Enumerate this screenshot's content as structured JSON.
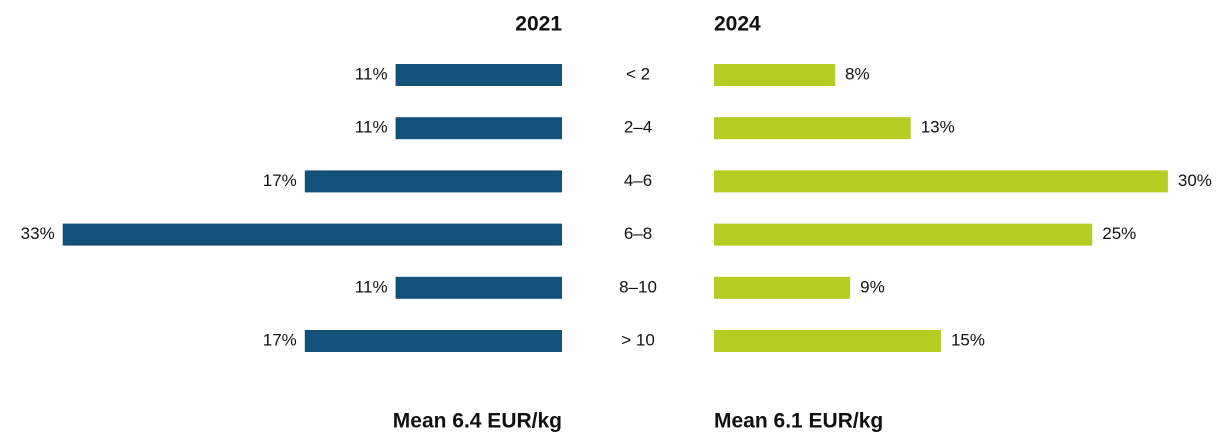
{
  "chart_data": {
    "type": "bar",
    "categories": [
      "< 2",
      "2–4",
      "4–6",
      "6–8",
      "8–10",
      "> 10"
    ],
    "series": [
      {
        "name": "2021",
        "color": "#12527a",
        "values": [
          11,
          11,
          17,
          33,
          11,
          17
        ],
        "value_labels": [
          "11%",
          "11%",
          "17%",
          "33%",
          "11%",
          "17%"
        ]
      },
      {
        "name": "2024",
        "color": "#b5cc22",
        "values": [
          8,
          13,
          30,
          25,
          9,
          15
        ],
        "value_labels": [
          "8%",
          "13%",
          "30%",
          "25%",
          "9%",
          "15%"
        ]
      }
    ],
    "annotations": [
      "Mean 6.4 EUR/kg",
      "Mean 6.1 EUR/kg"
    ]
  }
}
